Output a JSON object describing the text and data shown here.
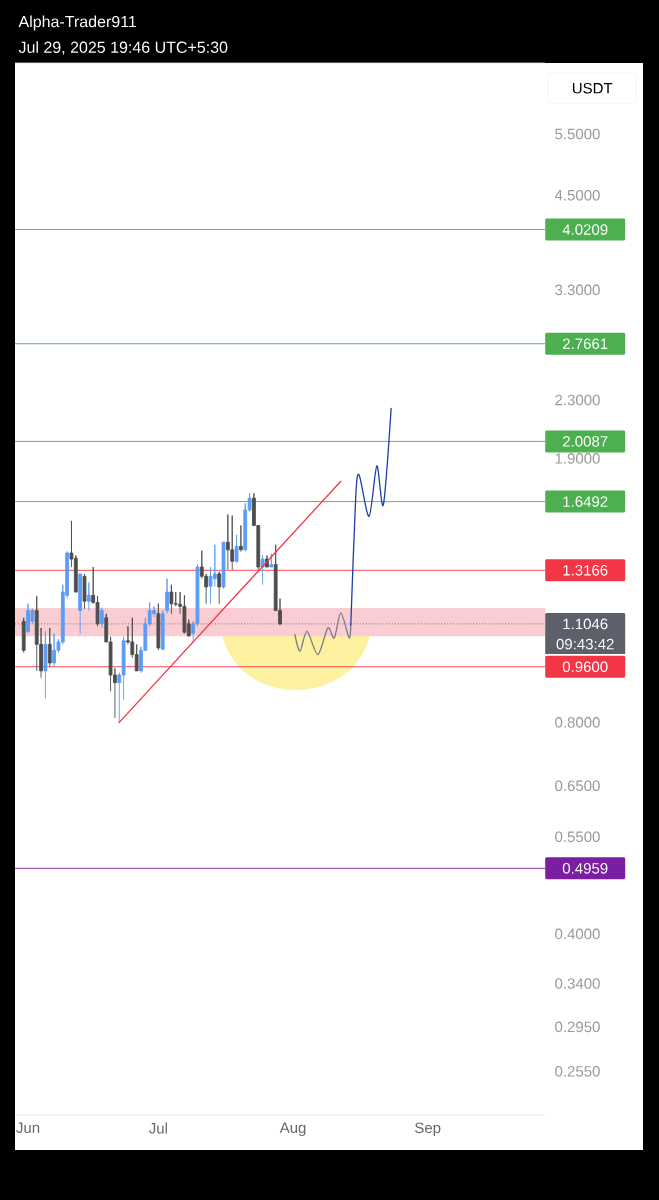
{
  "chart_data": {
    "type": "candlestick",
    "title": "Alpha-Trader911",
    "subtitle": "Jul 29, 2025 19:46 UTC+5:30",
    "x": [
      "2025-05-31",
      "2025-06-01",
      "2025-06-02",
      "2025-06-03",
      "2025-06-04",
      "2025-06-05",
      "2025-06-06",
      "2025-06-07",
      "2025-06-08",
      "2025-06-09",
      "2025-06-10",
      "2025-06-11",
      "2025-06-12",
      "2025-06-13",
      "2025-06-14",
      "2025-06-15",
      "2025-06-16",
      "2025-06-17",
      "2025-06-18",
      "2025-06-19",
      "2025-06-20",
      "2025-06-21",
      "2025-06-22",
      "2025-06-23",
      "2025-06-24",
      "2025-06-25",
      "2025-06-26",
      "2025-06-27",
      "2025-06-28",
      "2025-06-29",
      "2025-06-30",
      "2025-07-01",
      "2025-07-02",
      "2025-07-03",
      "2025-07-04",
      "2025-07-05",
      "2025-07-06",
      "2025-07-07",
      "2025-07-08",
      "2025-07-09",
      "2025-07-10",
      "2025-07-11",
      "2025-07-12",
      "2025-07-13",
      "2025-07-14",
      "2025-07-15",
      "2025-07-16",
      "2025-07-17",
      "2025-07-18",
      "2025-07-19",
      "2025-07-20",
      "2025-07-21",
      "2025-07-22",
      "2025-07-23",
      "2025-07-24",
      "2025-07-25",
      "2025-07-26",
      "2025-07-27",
      "2025-07-28",
      "2025-07-29"
    ],
    "ohlc": [
      [
        1.114,
        1.127,
        1.005,
        1.013
      ],
      [
        1.078,
        1.18,
        1.07,
        1.154
      ],
      [
        1.114,
        1.16,
        1.105,
        1.154
      ],
      [
        1.154,
        1.21,
        0.947,
        1.033
      ],
      [
        1.033,
        1.09,
        0.926,
        0.947
      ],
      [
        0.947,
        1.078,
        0.865,
        1.033
      ],
      [
        1.033,
        1.09,
        0.96,
        0.972
      ],
      [
        0.972,
        1.07,
        0.962,
        1.013
      ],
      [
        1.013,
        1.05,
        1.005,
        1.041
      ],
      [
        1.041,
        1.256,
        1.033,
        1.226
      ],
      [
        1.213,
        1.4,
        1.2,
        1.393
      ],
      [
        1.393,
        1.548,
        1.331,
        1.366
      ],
      [
        1.37,
        1.382,
        1.226,
        1.226
      ],
      [
        1.154,
        1.301,
        1.07,
        1.301
      ],
      [
        1.291,
        1.301,
        1.16,
        1.19
      ],
      [
        1.19,
        1.265,
        1.154,
        1.213
      ],
      [
        1.213,
        1.331,
        1.18,
        1.185
      ],
      [
        1.185,
        1.21,
        1.096,
        1.105
      ],
      [
        1.105,
        1.165,
        1.09,
        1.154
      ],
      [
        1.127,
        1.142,
        1.041,
        1.041
      ],
      [
        1.041,
        1.059,
        0.886,
        0.934
      ],
      [
        0.934,
        0.955,
        0.812,
        0.911
      ],
      [
        0.911,
        0.941,
        0.798,
        0.934
      ],
      [
        0.934,
        1.059,
        0.861,
        1.045
      ],
      [
        1.045,
        1.096,
        1.033,
        1.041
      ],
      [
        1.041,
        1.127,
        0.988,
        0.999
      ],
      [
        0.999,
        1.033,
        0.947,
        0.947
      ],
      [
        0.947,
        1.025,
        0.941,
        1.013
      ],
      [
        1.013,
        1.127,
        1.01,
        1.105
      ],
      [
        1.105,
        1.185,
        1.096,
        1.154
      ],
      [
        1.142,
        1.17,
        1.13,
        1.154
      ],
      [
        1.142,
        1.18,
        1.013,
        1.021
      ],
      [
        1.017,
        1.154,
        1.013,
        1.142
      ],
      [
        1.154,
        1.281,
        1.142,
        1.226
      ],
      [
        1.226,
        1.256,
        1.142,
        1.18
      ],
      [
        1.18,
        1.226,
        1.17,
        1.178
      ],
      [
        1.178,
        1.226,
        1.142,
        1.17
      ],
      [
        1.17,
        1.213,
        1.07,
        1.075
      ],
      [
        1.105,
        1.12,
        1.06,
        1.062
      ],
      [
        1.07,
        1.114,
        1.041,
        1.105
      ],
      [
        1.105,
        1.342,
        1.096,
        1.331
      ],
      [
        1.331,
        1.404,
        1.281,
        1.291
      ],
      [
        1.291,
        1.301,
        1.18,
        1.247
      ],
      [
        1.25,
        1.331,
        1.18,
        1.291
      ],
      [
        1.281,
        1.432,
        1.247,
        1.301
      ],
      [
        1.301,
        1.31,
        1.18,
        1.247
      ],
      [
        1.247,
        1.444,
        1.24,
        1.444
      ],
      [
        1.444,
        1.581,
        1.319,
        1.408
      ],
      [
        1.408,
        1.575,
        1.319,
        1.356
      ],
      [
        1.356,
        1.479,
        1.35,
        1.424
      ],
      [
        1.424,
        1.525,
        1.4,
        1.408
      ],
      [
        1.408,
        1.64,
        1.4,
        1.605
      ],
      [
        1.605,
        1.695,
        1.595,
        1.668
      ],
      [
        1.668,
        1.695,
        1.525,
        1.525
      ],
      [
        1.525,
        1.525,
        1.319,
        1.331
      ],
      [
        1.331,
        1.382,
        1.256,
        1.366
      ],
      [
        1.366,
        1.382,
        1.33,
        1.331
      ],
      [
        1.331,
        1.39,
        1.331,
        1.342
      ],
      [
        1.342,
        1.432,
        1.154,
        1.154
      ],
      [
        1.154,
        1.2,
        1.1,
        1.1046
      ]
    ],
    "colors": [
      "#4d4d4d",
      "#5b9cf6",
      "#5b9cf6",
      "#4d4d4d",
      "#4d4d4d",
      "#5b9cf6",
      "#4d4d4d",
      "#5b9cf6",
      "#5b9cf6",
      "#5b9cf6",
      "#5b9cf6",
      "#4d4d4d",
      "#4d4d4d",
      "#5b9cf6",
      "#4d4d4d",
      "#5b9cf6",
      "#4d4d4d",
      "#4d4d4d",
      "#5b9cf6",
      "#4d4d4d",
      "#4d4d4d",
      "#4d4d4d",
      "#5b9cf6",
      "#5b9cf6",
      "#4d4d4d",
      "#4d4d4d",
      "#4d4d4d",
      "#5b9cf6",
      "#5b9cf6",
      "#5b9cf6",
      "#5b9cf6",
      "#4d4d4d",
      "#5b9cf6",
      "#5b9cf6",
      "#4d4d4d",
      "#4d4d4d",
      "#4d4d4d",
      "#4d4d4d",
      "#4d4d4d",
      "#5b9cf6",
      "#5b9cf6",
      "#4d4d4d",
      "#4d4d4d",
      "#5b9cf6",
      "#5b9cf6",
      "#4d4d4d",
      "#5b9cf6",
      "#4d4d4d",
      "#4d4d4d",
      "#5b9cf6",
      "#4d4d4d",
      "#5b9cf6",
      "#5b9cf6",
      "#4d4d4d",
      "#4d4d4d",
      "#5b9cf6",
      "#4d4d4d",
      "#5b9cf6",
      "#4d4d4d",
      "#4d4d4d"
    ],
    "series": [
      {
        "type": "line",
        "color": "#f23645",
        "x": [
          "2025-06-22",
          "2025-08-12"
        ],
        "values": [
          0.8,
          1.763
        ]
      },
      {
        "type": "line",
        "color": "#787b86",
        "x": [
          "2025-08-01T10:00",
          "2025-08-02T14:00",
          "2025-08-04T05:00",
          "2025-08-06T17:00",
          "2025-08-09T00:00",
          "2025-08-10T12:00",
          "2025-08-12T00:00",
          "2025-08-13T22:00",
          "2025-08-14T07:00"
        ],
        "values": [
          1.067,
          1.01,
          1.078,
          0.999,
          1.09,
          1.055,
          1.145,
          1.055,
          1.1
        ]
      },
      {
        "type": "line",
        "color": "#1e3fa8",
        "x": [
          "2025-08-14T07:00",
          "2025-08-15T10:00",
          "2025-08-16T05:00",
          "2025-08-18T12:00",
          "2025-08-20T07:00",
          "2025-08-21T19:00",
          "2025-08-23T14:00"
        ],
        "values": [
          1.1,
          1.668,
          1.8,
          1.571,
          1.854,
          1.632,
          2.238
        ]
      }
    ],
    "log": true,
    "xlim": [
      "2025-05-29",
      "2025-09-28"
    ],
    "ylim": [
      0.221,
      6.94
    ],
    "xticks": [
      {
        "value": "2025-06-01",
        "label": "Jun"
      },
      {
        "value": "2025-07-01",
        "label": "Jul"
      },
      {
        "value": "2025-08-01",
        "label": "Aug"
      },
      {
        "value": "2025-09-01",
        "label": "Sep"
      }
    ],
    "yticks": [
      {
        "value": 0.255,
        "label": "0.2550"
      },
      {
        "value": 0.295,
        "label": "0.2950"
      },
      {
        "value": 0.34,
        "label": "0.3400"
      },
      {
        "value": 0.4,
        "label": "0.4000"
      },
      {
        "value": 0.55,
        "label": "0.5500"
      },
      {
        "value": 0.65,
        "label": "0.6500"
      },
      {
        "value": 0.8,
        "label": "0.8000"
      },
      {
        "value": 1.9,
        "label": "1.9000"
      },
      {
        "value": 2.3,
        "label": "2.3000"
      },
      {
        "value": 3.3,
        "label": "3.3000"
      },
      {
        "value": 4.5,
        "label": "4.5000"
      },
      {
        "value": 5.5,
        "label": "5.5000"
      }
    ],
    "bands": [
      {
        "axis": "y",
        "from": 1.061,
        "to": 1.164,
        "color": "#f9cdd2"
      }
    ],
    "ref_lines": [
      {
        "axis": "y",
        "value": 4.0209,
        "label": "4.0209",
        "color": "#4caf50"
      },
      {
        "axis": "y",
        "value": 2.7661,
        "label": "2.7661",
        "color": "#4caf50"
      },
      {
        "axis": "y",
        "value": 2.0087,
        "label": "2.0087",
        "color": "#4caf50"
      },
      {
        "axis": "y",
        "value": 1.6492,
        "label": "1.6492",
        "color": "#4caf50"
      },
      {
        "axis": "y",
        "value": 1.3166,
        "label": "1.3166",
        "color": "#f23645"
      },
      {
        "axis": "y",
        "value": 1.1046,
        "label": "1.1046",
        "color": "#5d606b",
        "line_style": "dotted"
      },
      {
        "axis": "y",
        "value": 0.96,
        "label": "0.9600",
        "color": "#f23645"
      },
      {
        "axis": "y",
        "value": 0.4959,
        "label": "0.4959",
        "color": "#7b1fa2"
      }
    ],
    "annotations": [
      "USDT",
      "09:43:42"
    ]
  }
}
